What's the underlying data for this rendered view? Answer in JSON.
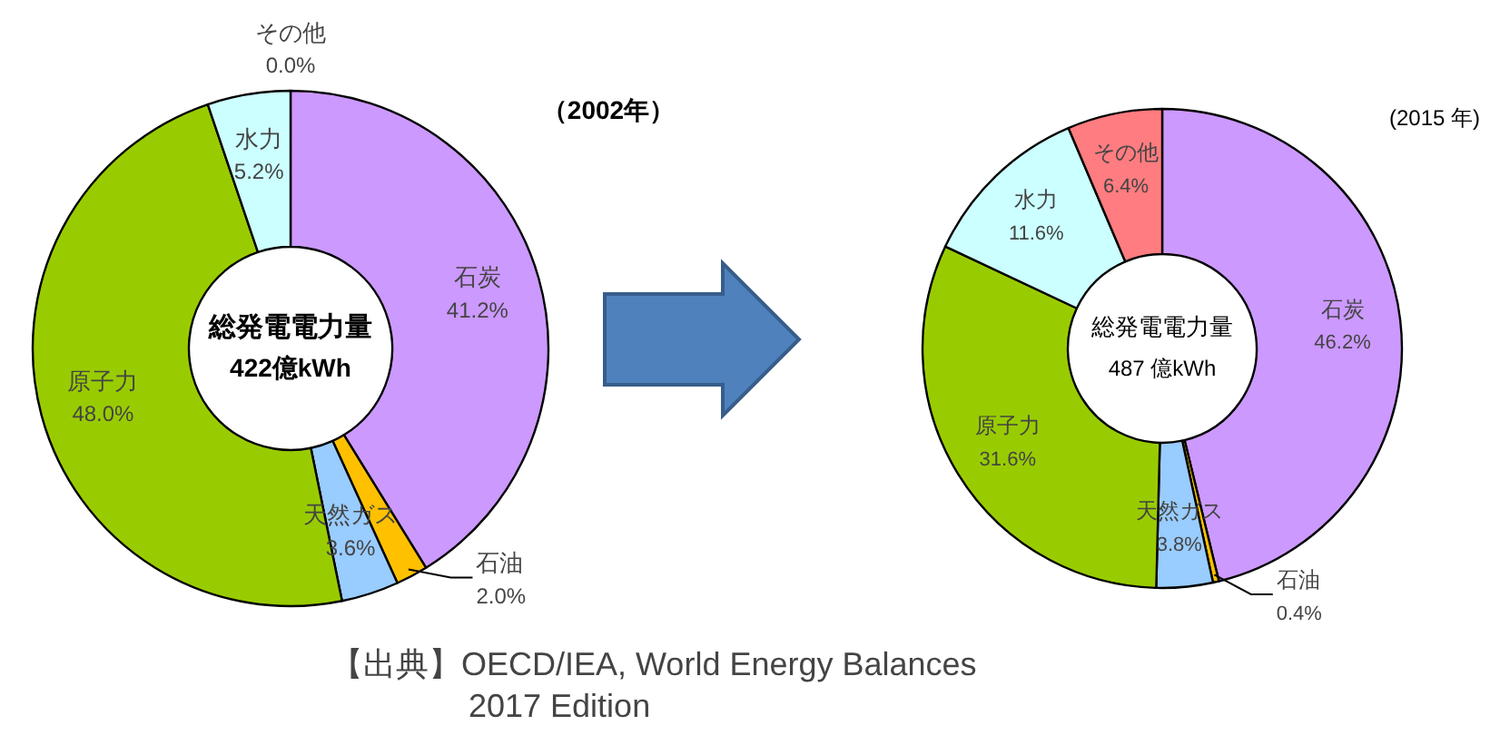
{
  "chart_data": [
    {
      "type": "donut",
      "title": "（2002年）",
      "categories": [
        "石炭",
        "石油",
        "天然ガス",
        "原子力",
        "水力",
        "その他"
      ],
      "values": [
        41.2,
        2.0,
        3.6,
        48.0,
        5.2,
        0.0
      ],
      "colors": [
        "#cc99ff",
        "#ffc000",
        "#99ccff",
        "#99cc00",
        "#ccffff",
        "#ff7c80"
      ],
      "value_labels": [
        "41.2%",
        "2.0%",
        "3.6%",
        "48.0%",
        "5.2%",
        "0.0%"
      ],
      "annotations": [
        "総発電電力量",
        "422億kWh",
        "【出典】OECD/IEA, World Energy Balances",
        "2017 Edition"
      ]
    },
    {
      "type": "donut",
      "title": "(2015 年)",
      "categories": [
        "石炭",
        "石油",
        "天然ガス",
        "原子力",
        "水力",
        "その他"
      ],
      "values": [
        46.2,
        0.4,
        3.8,
        31.6,
        11.6,
        6.4
      ],
      "colors": [
        "#cc99ff",
        "#ffc000",
        "#99ccff",
        "#99cc00",
        "#ccffff",
        "#ff7c80"
      ],
      "value_labels": [
        "46.2%",
        "0.4%",
        "3.8%",
        "31.6%",
        "11.6%",
        "6.4%"
      ],
      "annotations": [
        "総発電電力量",
        "487 億kWh"
      ]
    }
  ]
}
